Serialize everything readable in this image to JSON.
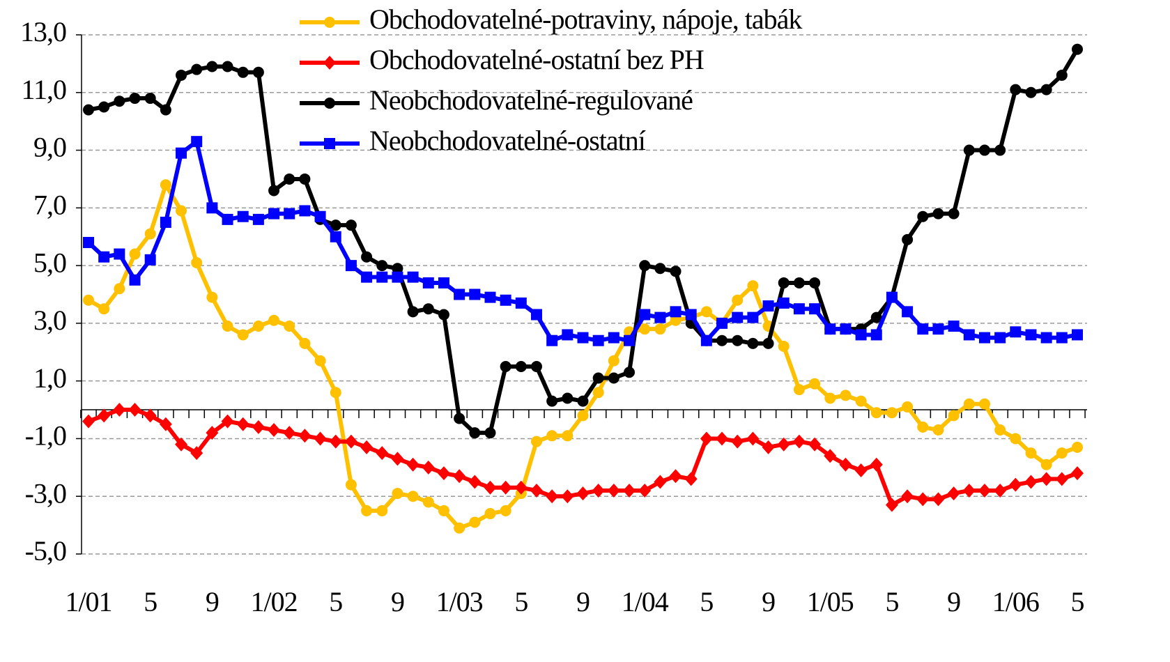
{
  "chart_data": {
    "type": "line",
    "categories": [
      "1/01",
      null,
      null,
      null,
      "5",
      null,
      null,
      null,
      "9",
      null,
      null,
      null,
      "1/02",
      null,
      null,
      null,
      "5",
      null,
      null,
      null,
      "9",
      null,
      null,
      null,
      "1/03",
      null,
      null,
      null,
      "5",
      null,
      null,
      null,
      "9",
      null,
      null,
      null,
      "1/04",
      null,
      null,
      null,
      "5",
      null,
      null,
      null,
      "9",
      null,
      null,
      null,
      "1/05",
      null,
      null,
      null,
      "5",
      null,
      null,
      null,
      "9",
      null,
      null,
      null,
      "1/06",
      null,
      null,
      null,
      "5"
    ],
    "ylim": [
      -5,
      13
    ],
    "yticks": [
      {
        "value": -5,
        "label": "-5,0"
      },
      {
        "value": -3,
        "label": "-3,0"
      },
      {
        "value": -1,
        "label": "-1,0"
      },
      {
        "value": 1,
        "label": "1,0"
      },
      {
        "value": 3,
        "label": "3,0"
      },
      {
        "value": 5,
        "label": "5,0"
      },
      {
        "value": 7,
        "label": "7,0"
      },
      {
        "value": 9,
        "label": "9,0"
      },
      {
        "value": 11,
        "label": "11,0"
      },
      {
        "value": 13,
        "label": "13,0"
      }
    ],
    "grid": true,
    "legend": "top",
    "series": [
      {
        "name": "Obchodovatelné-potraviny, nápoje, tabák",
        "color": "#ffc000",
        "marker": "circle",
        "values": [
          3.8,
          3.5,
          4.2,
          5.4,
          6.1,
          7.8,
          6.9,
          5.1,
          3.9,
          2.9,
          2.6,
          2.9,
          3.1,
          2.9,
          2.3,
          1.7,
          0.6,
          -2.6,
          -3.5,
          -3.5,
          -2.9,
          -3.0,
          -3.2,
          -3.5,
          -4.1,
          -3.9,
          -3.6,
          -3.5,
          -2.9,
          -1.1,
          -0.9,
          -0.9,
          -0.2,
          0.6,
          1.7,
          2.7,
          2.8,
          2.8,
          3.1,
          3.2,
          3.4,
          3.0,
          3.8,
          4.3,
          2.9,
          2.2,
          0.7,
          0.9,
          0.4,
          0.5,
          0.3,
          -0.1,
          -0.1,
          0.1,
          -0.6,
          -0.7,
          -0.2,
          0.2,
          0.2,
          -0.7,
          -1.0,
          -1.5,
          -1.9,
          -1.5,
          -1.3
        ]
      },
      {
        "name": "Obchodovatelné-ostatní bez PH",
        "color": "#ff0000",
        "marker": "diamond",
        "values": [
          -0.4,
          -0.2,
          0.0,
          0.0,
          -0.2,
          -0.5,
          -1.2,
          -1.5,
          -0.8,
          -0.4,
          -0.5,
          -0.6,
          -0.7,
          -0.8,
          -0.9,
          -1.0,
          -1.1,
          -1.1,
          -1.3,
          -1.5,
          -1.7,
          -1.9,
          -2.0,
          -2.2,
          -2.3,
          -2.5,
          -2.7,
          -2.7,
          -2.7,
          -2.8,
          -3.0,
          -3.0,
          -2.9,
          -2.8,
          -2.8,
          -2.8,
          -2.8,
          -2.5,
          -2.3,
          -2.4,
          -1.0,
          -1.0,
          -1.1,
          -1.0,
          -1.3,
          -1.2,
          -1.1,
          -1.2,
          -1.6,
          -1.9,
          -2.1,
          -1.9,
          -3.3,
          -3.0,
          -3.1,
          -3.1,
          -2.9,
          -2.8,
          -2.8,
          -2.8,
          -2.6,
          -2.5,
          -2.4,
          -2.4,
          -2.2
        ]
      },
      {
        "name": "Neobchodovatelné-regulované",
        "color": "#000000",
        "marker": "circle",
        "values": [
          10.4,
          10.5,
          10.7,
          10.8,
          10.8,
          10.4,
          11.6,
          11.8,
          11.9,
          11.9,
          11.7,
          11.7,
          7.6,
          8.0,
          8.0,
          6.6,
          6.4,
          6.4,
          5.3,
          5.0,
          4.9,
          3.4,
          3.5,
          3.3,
          -0.3,
          -0.8,
          -0.8,
          1.5,
          1.5,
          1.5,
          0.3,
          0.4,
          0.3,
          1.1,
          1.1,
          1.3,
          5.0,
          4.9,
          4.8,
          3.0,
          2.4,
          2.4,
          2.4,
          2.3,
          2.3,
          4.4,
          4.4,
          4.4,
          2.8,
          2.8,
          2.8,
          3.2,
          3.9,
          5.9,
          6.7,
          6.8,
          6.8,
          9.0,
          9.0,
          9.0,
          11.1,
          11.0,
          11.1,
          11.6,
          12.5
        ]
      },
      {
        "name": "Neobchodovatelné-ostatní",
        "color": "#0000ff",
        "marker": "square",
        "values": [
          5.8,
          5.3,
          5.4,
          4.5,
          5.2,
          6.5,
          8.9,
          9.3,
          7.0,
          6.6,
          6.7,
          6.6,
          6.8,
          6.8,
          6.9,
          6.7,
          6.0,
          5.0,
          4.6,
          4.6,
          4.6,
          4.6,
          4.4,
          4.4,
          4.0,
          4.0,
          3.9,
          3.8,
          3.7,
          3.3,
          2.4,
          2.6,
          2.5,
          2.4,
          2.5,
          2.4,
          3.3,
          3.2,
          3.4,
          3.3,
          2.4,
          3.0,
          3.2,
          3.2,
          3.6,
          3.7,
          3.5,
          3.5,
          2.8,
          2.8,
          2.6,
          2.6,
          3.9,
          3.4,
          2.8,
          2.8,
          2.9,
          2.6,
          2.5,
          2.5,
          2.7,
          2.6,
          2.5,
          2.5,
          2.6
        ]
      }
    ]
  }
}
